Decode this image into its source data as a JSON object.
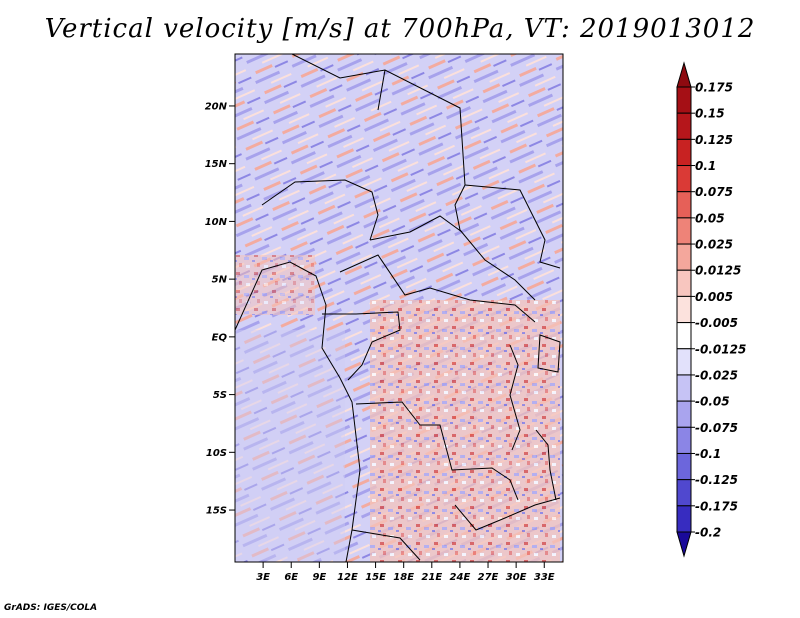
{
  "title": "Vertical velocity [m/s] at 700hPa, VT: 2019013012",
  "credit": "GrADS: IGES/COLA",
  "map": {
    "lon_range": [
      0,
      35
    ],
    "lat_range": [
      -19.5,
      24.5
    ],
    "lat_ticks": [
      {
        "value": 20,
        "label": "20N"
      },
      {
        "value": 15,
        "label": "15N"
      },
      {
        "value": 10,
        "label": "10N"
      },
      {
        "value": 5,
        "label": "5N"
      },
      {
        "value": 0,
        "label": "EQ"
      },
      {
        "value": -5,
        "label": "5S"
      },
      {
        "value": -10,
        "label": "10S"
      },
      {
        "value": -15,
        "label": "15S"
      }
    ],
    "lon_ticks": [
      {
        "value": 3,
        "label": "3E"
      },
      {
        "value": 6,
        "label": "6E"
      },
      {
        "value": 9,
        "label": "9E"
      },
      {
        "value": 12,
        "label": "12E"
      },
      {
        "value": 15,
        "label": "15E"
      },
      {
        "value": 18,
        "label": "18E"
      },
      {
        "value": 21,
        "label": "21E"
      },
      {
        "value": 24,
        "label": "24E"
      },
      {
        "value": 27,
        "label": "27E"
      },
      {
        "value": 30,
        "label": "30E"
      },
      {
        "value": 33,
        "label": "33E"
      }
    ]
  },
  "colorbar": {
    "levels": [
      {
        "label": "0.175",
        "color": "#a50f15"
      },
      {
        "label": "0.15",
        "color": "#b5161b"
      },
      {
        "label": "0.125",
        "color": "#c82222"
      },
      {
        "label": "0.1",
        "color": "#da3a36"
      },
      {
        "label": "0.075",
        "color": "#e66058"
      },
      {
        "label": "0.05",
        "color": "#ee8378"
      },
      {
        "label": "0.025",
        "color": "#f4a79c"
      },
      {
        "label": "0.0125",
        "color": "#f8c6bf"
      },
      {
        "label": "0.005",
        "color": "#fce2dd"
      },
      {
        "label": "-0.005",
        "color": "#ffffff"
      },
      {
        "label": "-0.0125",
        "color": "#e2e1fb"
      },
      {
        "label": "-0.025",
        "color": "#c6c3f5"
      },
      {
        "label": "-0.05",
        "color": "#a9a4ee"
      },
      {
        "label": "-0.075",
        "color": "#8b85e6"
      },
      {
        "label": "-0.1",
        "color": "#6c66dc"
      },
      {
        "label": "-0.125",
        "color": "#5048cf"
      },
      {
        "label": "-0.175",
        "color": "#372cc0"
      },
      {
        "label": "-0.2",
        "color": "#2512ac"
      }
    ],
    "top_arrow_color": "#8e0a10",
    "bottom_arrow_color": "#1a0a9a"
  }
}
